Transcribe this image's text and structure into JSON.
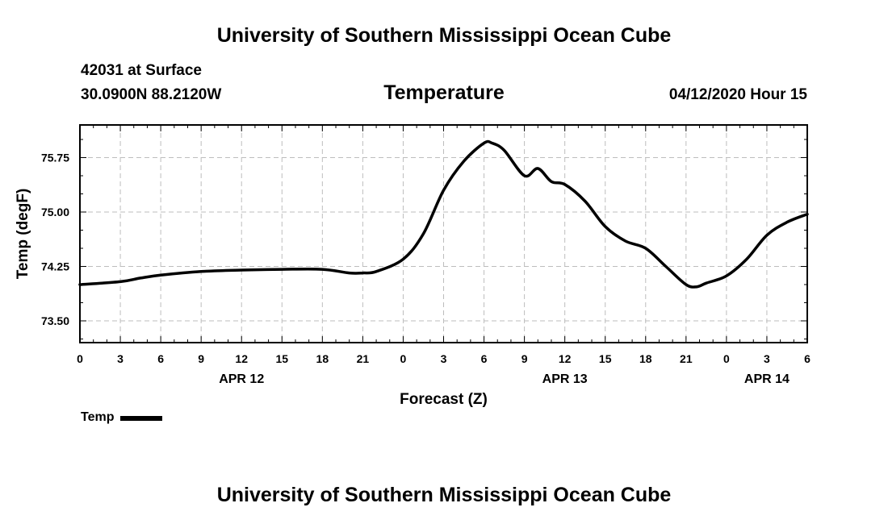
{
  "header": {
    "title": "University of Southern Mississippi Ocean Cube",
    "station": "42031 at Surface",
    "coords": "30.0900N 88.2120W",
    "variable": "Temperature",
    "datetime": "04/12/2020 Hour 15"
  },
  "footer": {
    "title": "University of Southern Mississippi Ocean Cube"
  },
  "legend": {
    "label": "Temp",
    "color": "#000000"
  },
  "chart_data": {
    "type": "line",
    "title": "Temperature",
    "xlabel": "Forecast (Z)",
    "ylabel": "Temp (degF)",
    "xlim": [
      0,
      54
    ],
    "ylim": [
      73.2,
      76.2
    ],
    "grid": true,
    "x_ticks": [
      0,
      3,
      6,
      9,
      12,
      15,
      18,
      21,
      24,
      27,
      30,
      33,
      36,
      39,
      42,
      45,
      48,
      51,
      54
    ],
    "x_tick_labels": [
      "0",
      "3",
      "6",
      "9",
      "12",
      "15",
      "18",
      "21",
      "0",
      "3",
      "6",
      "9",
      "12",
      "15",
      "18",
      "21",
      "0",
      "3",
      "6"
    ],
    "y_ticks": [
      73.5,
      74.25,
      75.0,
      75.75
    ],
    "y_tick_labels": [
      "73.50",
      "74.25",
      "75.00",
      "75.75"
    ],
    "date_labels": [
      {
        "x": 12,
        "label": "APR 12"
      },
      {
        "x": 36,
        "label": "APR 13"
      },
      {
        "x": 51,
        "label": "APR 14"
      }
    ],
    "series": [
      {
        "name": "Temp",
        "color": "#000000",
        "x": [
          0,
          3,
          4.5,
          6,
          9,
          12,
          15,
          18,
          20,
          21,
          22,
          24,
          25.5,
          27,
          28.5,
          30,
          30.6,
          31.5,
          33,
          34,
          35,
          36,
          37.5,
          39,
          40.5,
          42,
          43.5,
          45,
          45.8,
          46.5,
          48,
          49.5,
          51,
          52.5,
          54
        ],
        "values": [
          74.0,
          74.04,
          74.09,
          74.13,
          74.18,
          74.2,
          74.21,
          74.21,
          74.16,
          74.16,
          74.18,
          74.35,
          74.7,
          75.3,
          75.7,
          75.95,
          75.95,
          75.85,
          75.5,
          75.6,
          75.42,
          75.38,
          75.15,
          74.8,
          74.6,
          74.5,
          74.25,
          74.0,
          73.97,
          74.02,
          74.12,
          74.35,
          74.68,
          74.86,
          74.97
        ]
      }
    ]
  }
}
